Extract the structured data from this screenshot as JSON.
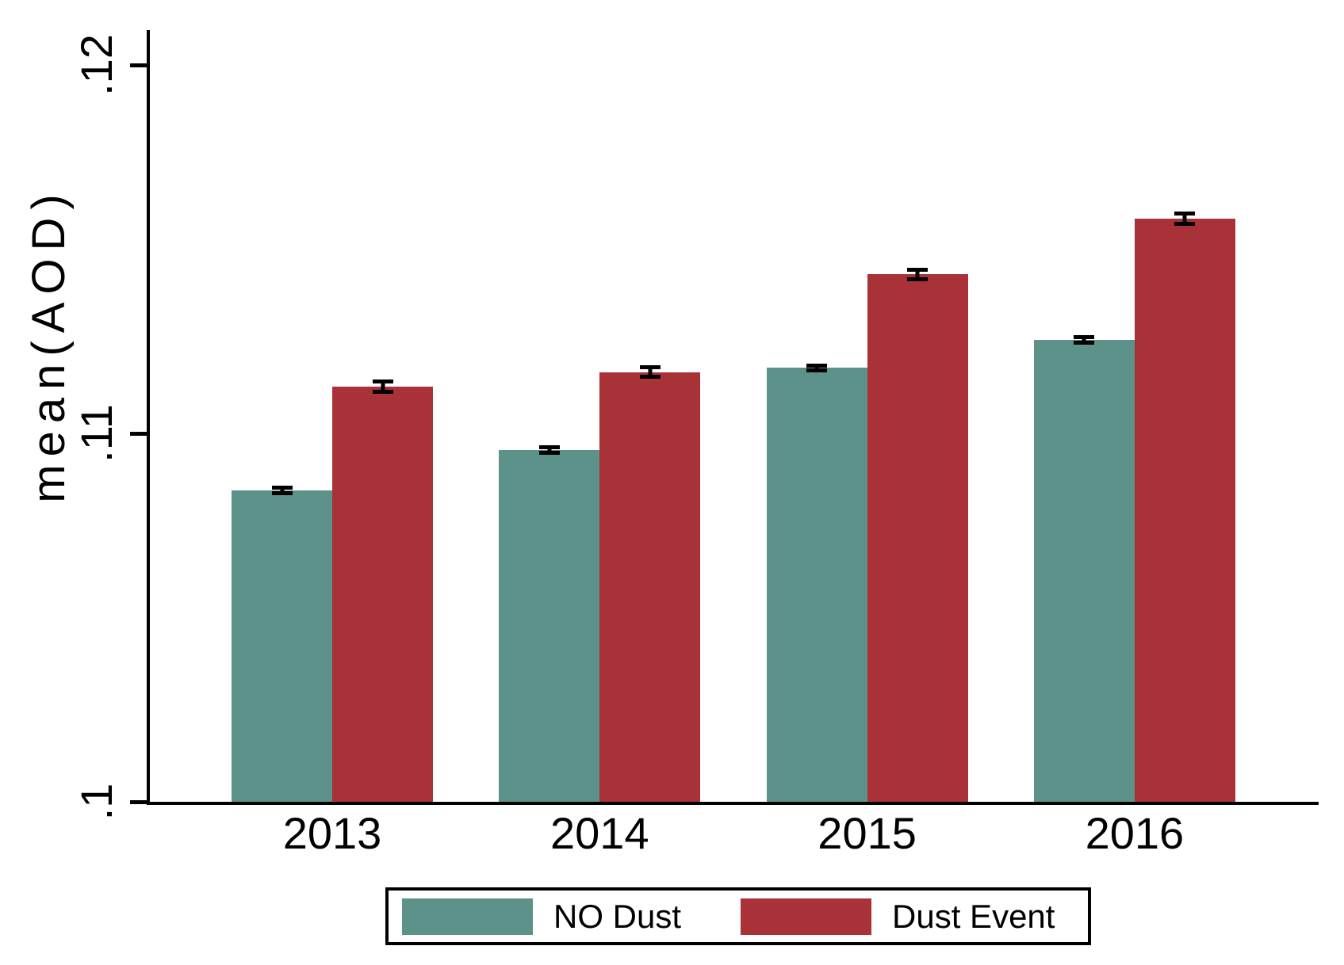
{
  "chart_data": {
    "type": "bar",
    "title": "",
    "xlabel": "",
    "ylabel": "mean(AOD)",
    "categories": [
      "2013",
      "2014",
      "2015",
      "2016"
    ],
    "series": [
      {
        "name": "NO Dust",
        "color": "#5C9289",
        "values": [
          0.10845,
          0.10955,
          0.11178,
          0.11254
        ],
        "ci": [
          8e-05,
          8e-05,
          8e-05,
          8e-05
        ]
      },
      {
        "name": "Dust Event",
        "color": "#A93238",
        "values": [
          0.11127,
          0.11166,
          0.11432,
          0.11583
        ],
        "ci": [
          0.00016,
          0.00014,
          0.00014,
          0.00015
        ]
      }
    ],
    "ylim": [
      0.1,
      0.12
    ],
    "yticks": [
      {
        "label": ".1",
        "value": 0.1
      },
      {
        "label": ".11",
        "value": 0.11
      },
      {
        "label": ".12",
        "value": 0.12
      }
    ],
    "error_bars": true,
    "error_bar_color": "#000000",
    "grid": false,
    "axis_color": "#000000",
    "background_color": "#FFFFFF",
    "legend": {
      "position": "bottom",
      "entries": [
        "NO Dust",
        "Dust Event"
      ]
    }
  }
}
